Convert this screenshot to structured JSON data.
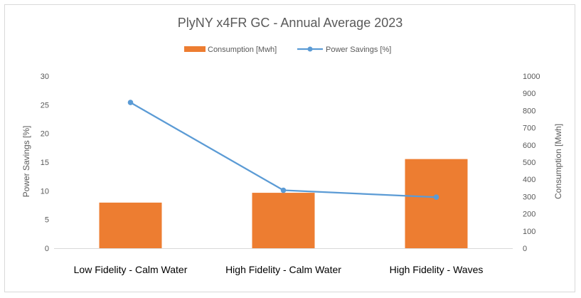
{
  "chart_data": {
    "type": "bar+line",
    "title": "PlyNY x4FR GC - Annual Average 2023",
    "categories": [
      "Low Fidelity - Calm Water",
      "High Fidelity - Calm Water",
      "High Fidelity - Waves"
    ],
    "series": [
      {
        "name": "Consumption [Mwh]",
        "type": "bar",
        "axis": "right",
        "values": [
          265,
          322,
          518
        ],
        "color": "#ED7D31"
      },
      {
        "name": "Power Savings [%]",
        "type": "line",
        "axis": "left",
        "values": [
          25.4,
          10.1,
          8.9
        ],
        "color": "#5B9BD5"
      }
    ],
    "y_left": {
      "label": "Power Savings [%]",
      "min": 0,
      "max": 30,
      "ticks": [
        "0",
        "5",
        "10",
        "15",
        "20",
        "25",
        "30"
      ]
    },
    "y_right": {
      "label": "Consumption [Mwh]",
      "min": 0,
      "max": 1000,
      "ticks": [
        "0",
        "100",
        "200",
        "300",
        "400",
        "500",
        "600",
        "700",
        "800",
        "900",
        "1000"
      ]
    },
    "legend_position": "top-center"
  }
}
